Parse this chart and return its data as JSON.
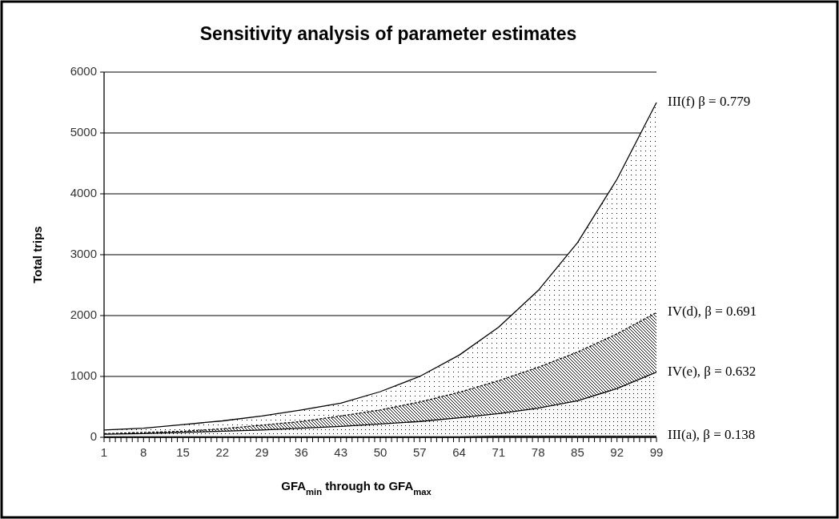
{
  "chart_data": {
    "type": "area",
    "title": "Sensitivity analysis of parameter estimates",
    "xlabel": "GFA$_{min}$ through to GFA$_{max}$",
    "ylabel": "Total trips",
    "x": [
      1,
      8,
      15,
      22,
      29,
      36,
      43,
      50,
      57,
      64,
      71,
      78,
      85,
      92,
      99
    ],
    "xlim": [
      1,
      99
    ],
    "xticks": [
      1,
      {
        "value": 2,
        "label": null
      },
      {
        "value": 3,
        "label": null
      },
      {
        "value": 4,
        "label": null
      },
      {
        "value": 5,
        "label": null
      },
      {
        "value": 6,
        "label": null
      },
      {
        "value": 7,
        "label": null
      },
      8,
      {
        "value": 9,
        "label": null
      },
      {
        "value": 10,
        "label": null
      },
      {
        "value": 11,
        "label": null
      },
      {
        "value": 12,
        "label": null
      },
      {
        "value": 13,
        "label": null
      },
      {
        "value": 14,
        "label": null
      },
      15,
      {
        "value": 16,
        "label": null
      },
      {
        "value": 17,
        "label": null
      },
      {
        "value": 18,
        "label": null
      },
      {
        "value": 19,
        "label": null
      },
      {
        "value": 20,
        "label": null
      },
      {
        "value": 21,
        "label": null
      },
      22,
      {
        "value": 23,
        "label": null
      },
      {
        "value": 24,
        "label": null
      },
      {
        "value": 25,
        "label": null
      },
      {
        "value": 26,
        "label": null
      },
      {
        "value": 27,
        "label": null
      },
      {
        "value": 28,
        "label": null
      },
      29,
      {
        "value": 30,
        "label": null
      },
      {
        "value": 31,
        "label": null
      },
      {
        "value": 32,
        "label": null
      },
      {
        "value": 33,
        "label": null
      },
      {
        "value": 34,
        "label": null
      },
      {
        "value": 35,
        "label": null
      },
      36,
      {
        "value": 37,
        "label": null
      },
      {
        "value": 38,
        "label": null
      },
      {
        "value": 39,
        "label": null
      },
      {
        "value": 40,
        "label": null
      },
      {
        "value": 41,
        "label": null
      },
      {
        "value": 42,
        "label": null
      },
      43,
      {
        "value": 44,
        "label": null
      },
      {
        "value": 45,
        "label": null
      },
      {
        "value": 46,
        "label": null
      },
      {
        "value": 47,
        "label": null
      },
      {
        "value": 48,
        "label": null
      },
      {
        "value": 49,
        "label": null
      },
      50,
      {
        "value": 51,
        "label": null
      },
      {
        "value": 52,
        "label": null
      },
      {
        "value": 53,
        "label": null
      },
      {
        "value": 54,
        "label": null
      },
      {
        "value": 55,
        "label": null
      },
      {
        "value": 56,
        "label": null
      },
      57,
      {
        "value": 58,
        "label": null
      },
      {
        "value": 59,
        "label": null
      },
      {
        "value": 60,
        "label": null
      },
      {
        "value": 61,
        "label": null
      },
      {
        "value": 62,
        "label": null
      },
      {
        "value": 63,
        "label": null
      },
      64,
      {
        "value": 65,
        "label": null
      },
      {
        "value": 66,
        "label": null
      },
      {
        "value": 67,
        "label": null
      },
      {
        "value": 68,
        "label": null
      },
      {
        "value": 69,
        "label": null
      },
      {
        "value": 70,
        "label": null
      },
      71,
      {
        "value": 72,
        "label": null
      },
      {
        "value": 73,
        "label": null
      },
      {
        "value": 74,
        "label": null
      },
      {
        "value": 75,
        "label": null
      },
      {
        "value": 76,
        "label": null
      },
      {
        "value": 77,
        "label": null
      },
      78,
      {
        "value": 79,
        "label": null
      },
      {
        "value": 80,
        "label": null
      },
      {
        "value": 81,
        "label": null
      },
      {
        "value": 82,
        "label": null
      },
      {
        "value": 83,
        "label": null
      },
      {
        "value": 84,
        "label": null
      },
      85,
      {
        "value": 86,
        "label": null
      },
      {
        "value": 87,
        "label": null
      },
      {
        "value": 88,
        "label": null
      },
      {
        "value": 89,
        "label": null
      },
      {
        "value": 90,
        "label": null
      },
      {
        "value": 91,
        "label": null
      },
      92,
      {
        "value": 93,
        "label": null
      },
      {
        "value": 94,
        "label": null
      },
      {
        "value": 95,
        "label": null
      },
      {
        "value": 96,
        "label": null
      },
      {
        "value": 97,
        "label": null
      },
      {
        "value": 98,
        "label": null
      },
      99
    ],
    "ylim": [
      0,
      6000
    ],
    "yticks": [
      0,
      1000,
      2000,
      3000,
      4000,
      5000,
      6000
    ],
    "grid": "y",
    "legend": false,
    "series": [
      {
        "name": "III(f) β = 0.779",
        "color": "#000000",
        "values": [
          120,
          150,
          210,
          270,
          350,
          450,
          560,
          750,
          1000,
          1350,
          1810,
          2410,
          3200,
          4240,
          5500
        ]
      },
      {
        "name": "IV(d), β = 0.691",
        "color": "#000000",
        "line_style": "dashed",
        "values": [
          60,
          80,
          100,
          140,
          200,
          260,
          350,
          450,
          580,
          740,
          930,
          1150,
          1400,
          1700,
          2050
        ]
      },
      {
        "name": "IV(e), β = 0.632",
        "color": "#000000",
        "values": [
          50,
          60,
          80,
          100,
          120,
          150,
          180,
          220,
          260,
          320,
          390,
          480,
          600,
          800,
          1070
        ]
      },
      {
        "name": "III(a), β = 0.138",
        "type": "line",
        "color": "#000000",
        "values": [
          10,
          10,
          10,
          10,
          10,
          10,
          10,
          10,
          10,
          10,
          20,
          20,
          20,
          20,
          20
        ]
      }
    ]
  }
}
